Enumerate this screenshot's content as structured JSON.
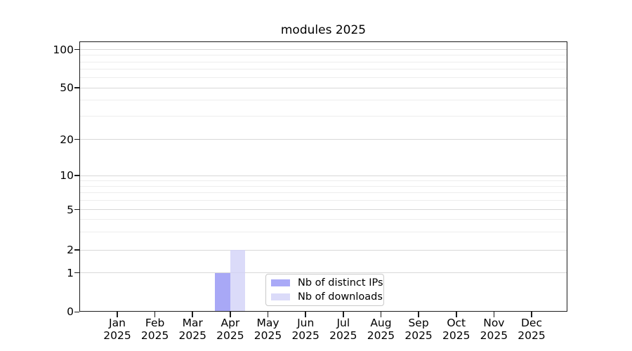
{
  "chart_data": {
    "type": "bar",
    "title": "modules 2025",
    "categories": [
      "Jan",
      "Feb",
      "Mar",
      "Apr",
      "May",
      "Jun",
      "Jul",
      "Aug",
      "Sep",
      "Oct",
      "Nov",
      "Dec"
    ],
    "category_year": "2025",
    "series": [
      {
        "name": "Nb of distinct IPs",
        "color": "#a9a9f7",
        "fill": "rgba(134,134,243,0.72)",
        "values": [
          0,
          0,
          0,
          1,
          0,
          0,
          0,
          0,
          0,
          0,
          0,
          0
        ]
      },
      {
        "name": "Nb of downloads",
        "color": "#dbdbf9",
        "fill": "rgba(210,210,247,0.80)",
        "values": [
          0,
          0,
          0,
          2,
          0,
          0,
          0,
          0,
          0,
          0,
          0,
          0
        ]
      }
    ],
    "y_ticks": [
      0,
      1,
      2,
      5,
      10,
      20,
      50,
      100
    ],
    "y_minor_ticks": [
      3,
      4,
      6,
      7,
      8,
      9,
      30,
      40,
      60,
      70,
      80,
      90
    ],
    "y_axis_scale": "symlog",
    "ylim": [
      0,
      110
    ],
    "grid": "horizontal major and minor gridlines",
    "legend_position": "inside lower-center"
  },
  "colors": {
    "background": "#ffffff",
    "spine": "#1b1b1b",
    "grid_major": "#d8d8d8",
    "grid_minor": "#ededed",
    "text": "#000000",
    "legend_border": "#c9c9c9"
  }
}
